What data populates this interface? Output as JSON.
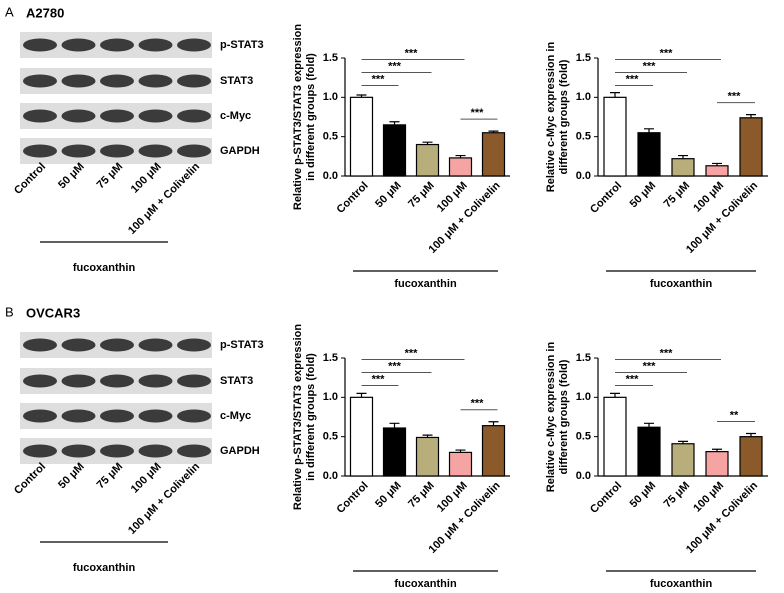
{
  "panels": [
    {
      "letter": "A",
      "cell_line": "A2780",
      "blot": {
        "rows": [
          "p-STAT3",
          "STAT3",
          "c-Myc",
          "GAPDH"
        ],
        "lanes": [
          "Control",
          "50 μM",
          "75 μM",
          "100 μM",
          "100 μM + Colivelin"
        ],
        "group": "fucoxanthin"
      }
    },
    {
      "letter": "B",
      "cell_line": "OVCAR3",
      "blot": {
        "rows": [
          "p-STAT3",
          "STAT3",
          "c-Myc",
          "GAPDH"
        ],
        "lanes": [
          "Control",
          "50 μM",
          "75 μM",
          "100 μM",
          "100 μM + Colivelin"
        ],
        "group": "fucoxanthin"
      }
    }
  ],
  "chart_data": [
    {
      "type": "bar",
      "y_label": [
        "Relative p-STAT3/STAT3 expression",
        "in different groups (fold)"
      ],
      "categories": [
        "Control",
        "50 μM",
        "75 μM",
        "100 μM",
        "100 μM + Colivelin"
      ],
      "values": [
        1.0,
        0.65,
        0.4,
        0.23,
        0.55
      ],
      "errors": [
        0.03,
        0.04,
        0.03,
        0.03,
        0.02
      ],
      "colors": [
        "#ffffff",
        "#000000",
        "#b8ae7c",
        "#f5a3a3",
        "#8a5a2a"
      ],
      "ylim": [
        0,
        1.5
      ],
      "yticks": [
        {
          "value": 0,
          "label": "0.0"
        },
        0.5,
        {
          "value": 1,
          "label": "1.0"
        },
        1.5
      ],
      "group_label": "fucoxanthin",
      "annotations": [
        {
          "label": "***",
          "between": [
            "Control",
            "50 μM"
          ]
        },
        {
          "label": "***",
          "between": [
            "Control",
            "75 μM"
          ]
        },
        {
          "label": "***",
          "between": [
            "Control",
            "100 μM"
          ]
        },
        {
          "label": "***",
          "between": [
            "100 μM",
            "100 μM + Colivelin"
          ]
        }
      ]
    },
    {
      "type": "bar",
      "y_label": [
        "Relative c-Myc expression in",
        "different groups (fold)"
      ],
      "categories": [
        "Control",
        "50 μM",
        "75 μM",
        "100 μM",
        "100 μM + Colivelin"
      ],
      "values": [
        1.0,
        0.55,
        0.22,
        0.13,
        0.74
      ],
      "errors": [
        0.06,
        0.05,
        0.04,
        0.03,
        0.04
      ],
      "colors": [
        "#ffffff",
        "#000000",
        "#b8ae7c",
        "#f5a3a3",
        "#8a5a2a"
      ],
      "ylim": [
        0,
        1.5
      ],
      "yticks": [
        {
          "value": 0,
          "label": "0.0"
        },
        0.5,
        {
          "value": 1,
          "label": "1.0"
        },
        1.5
      ],
      "group_label": "fucoxanthin",
      "annotations": [
        {
          "label": "***",
          "between": [
            "Control",
            "50 μM"
          ]
        },
        {
          "label": "***",
          "between": [
            "Control",
            "75 μM"
          ]
        },
        {
          "label": "***",
          "between": [
            "Control",
            "100 μM"
          ]
        },
        {
          "label": "***",
          "between": [
            "100 μM",
            "100 μM + Colivelin"
          ]
        }
      ]
    },
    {
      "type": "bar",
      "y_label": [
        "Relative p-STAT3/STAT3 expression",
        "in different groups (fold)"
      ],
      "categories": [
        "Control",
        "50 μM",
        "75 μM",
        "100 μM",
        "100 μM + Colivelin"
      ],
      "values": [
        1.0,
        0.61,
        0.49,
        0.3,
        0.64
      ],
      "errors": [
        0.05,
        0.06,
        0.03,
        0.03,
        0.05
      ],
      "colors": [
        "#ffffff",
        "#000000",
        "#b8ae7c",
        "#f5a3a3",
        "#8a5a2a"
      ],
      "ylim": [
        0,
        1.5
      ],
      "yticks": [
        {
          "value": 0,
          "label": "0.0"
        },
        0.5,
        {
          "value": 1,
          "label": "1.0"
        },
        1.5
      ],
      "group_label": "fucoxanthin",
      "annotations": [
        {
          "label": "***",
          "between": [
            "Control",
            "50 μM"
          ]
        },
        {
          "label": "***",
          "between": [
            "Control",
            "75 μM"
          ]
        },
        {
          "label": "***",
          "between": [
            "Control",
            "100 μM"
          ]
        },
        {
          "label": "***",
          "between": [
            "100 μM",
            "100 μM + Colivelin"
          ]
        }
      ]
    },
    {
      "type": "bar",
      "y_label": [
        "Relative c-Myc expression in",
        "different groups (fold)"
      ],
      "categories": [
        "Control",
        "50 μM",
        "75 μM",
        "100 μM",
        "100 μM + Colivelin"
      ],
      "values": [
        1.0,
        0.62,
        0.41,
        0.31,
        0.5
      ],
      "errors": [
        0.05,
        0.05,
        0.03,
        0.03,
        0.04
      ],
      "colors": [
        "#ffffff",
        "#000000",
        "#b8ae7c",
        "#f5a3a3",
        "#8a5a2a"
      ],
      "ylim": [
        0,
        1.5
      ],
      "yticks": [
        {
          "value": 0,
          "label": "0.0"
        },
        0.5,
        {
          "value": 1,
          "label": "1.0"
        },
        1.5
      ],
      "group_label": "fucoxanthin",
      "annotations": [
        {
          "label": "***",
          "between": [
            "Control",
            "50 μM"
          ]
        },
        {
          "label": "***",
          "between": [
            "Control",
            "75 μM"
          ]
        },
        {
          "label": "***",
          "between": [
            "Control",
            "100 μM"
          ]
        },
        {
          "label": "**",
          "between": [
            "100 μM",
            "100 μM + Colivelin"
          ]
        }
      ]
    }
  ]
}
